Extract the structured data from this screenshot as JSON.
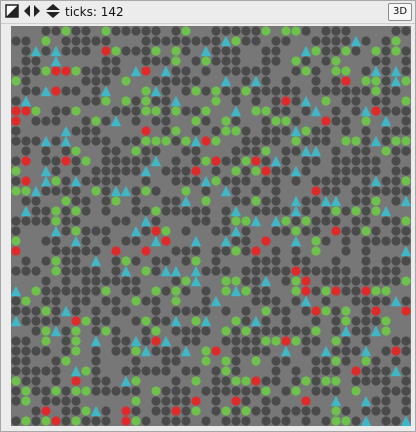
{
  "toolbar": {
    "icons": [
      "arrange-icon",
      "speed-arrows-horizontal-icon",
      "speed-arrows-vertical-icon"
    ],
    "ticks_label": "ticks: 142",
    "view_toggle_label": "3D"
  },
  "world": {
    "background_color": "#8a8a8a",
    "patch_background_color": "#777777",
    "agent_colors": {
      "dark": "#4a4a4a",
      "green": "#6cc24a",
      "red": "#e02a2a",
      "cyan": "#3fb7c6"
    }
  }
}
